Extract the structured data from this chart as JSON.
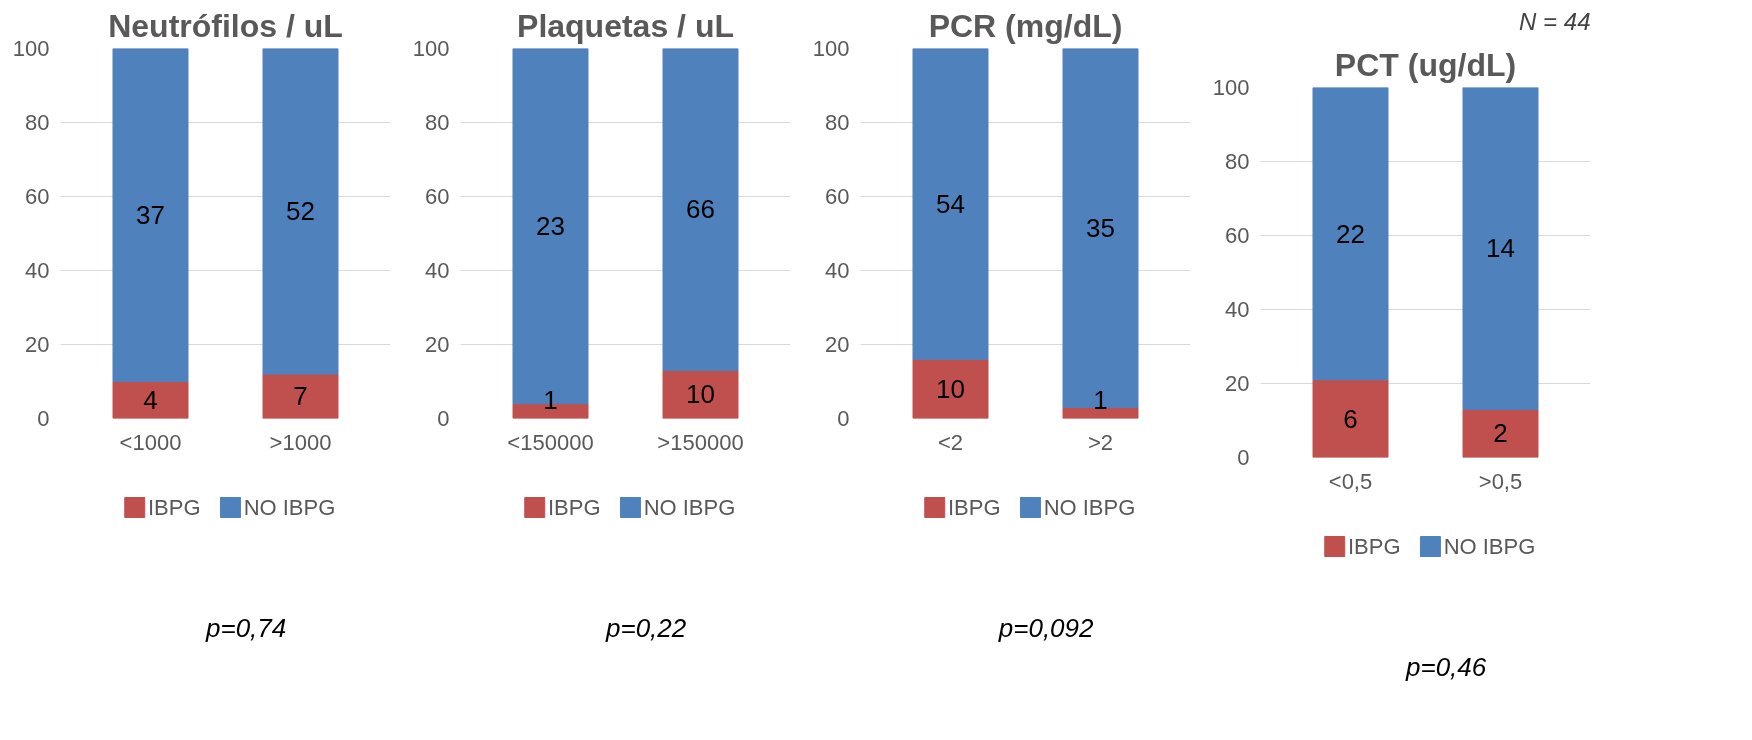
{
  "chart_data": [
    {
      "type": "bar",
      "stacked": true,
      "title": "Neutrófilos / uL",
      "categories": [
        "<1000",
        ">1000"
      ],
      "ylim": [
        0,
        100
      ],
      "yticks": [
        0,
        20,
        40,
        60,
        80,
        100
      ],
      "grid": "y",
      "legend": "bottom",
      "annotations": [
        "4",
        "7",
        "37",
        "52",
        "p=0,74"
      ],
      "series": [
        {
          "name": "IBPG",
          "color": "#c0504d",
          "values": [
            10,
            12
          ]
        },
        {
          "name": "NO IBPG",
          "color": "#4f81bd",
          "values": [
            90,
            88
          ]
        }
      ]
    },
    {
      "type": "bar",
      "stacked": true,
      "title": "Plaquetas / uL",
      "categories": [
        "<150000",
        ">150000"
      ],
      "ylim": [
        0,
        100
      ],
      "yticks": [
        0,
        20,
        40,
        60,
        80,
        100
      ],
      "grid": "y",
      "legend": "bottom",
      "annotations": [
        "1",
        "10",
        "23",
        "66",
        "p=0,22"
      ],
      "series": [
        {
          "name": "IBPG",
          "color": "#c0504d",
          "values": [
            4,
            13
          ]
        },
        {
          "name": "NO IBPG",
          "color": "#4f81bd",
          "values": [
            96,
            87
          ]
        }
      ]
    },
    {
      "type": "bar",
      "stacked": true,
      "title": "PCR (mg/dL)",
      "categories": [
        "<2",
        ">2"
      ],
      "ylim": [
        0,
        100
      ],
      "yticks": [
        0,
        20,
        40,
        60,
        80,
        100
      ],
      "grid": "y",
      "legend": "bottom",
      "annotations": [
        "10",
        "1",
        "54",
        "35",
        "p=0,092"
      ],
      "series": [
        {
          "name": "IBPG",
          "color": "#c0504d",
          "values": [
            16,
            3
          ]
        },
        {
          "name": "NO IBPG",
          "color": "#4f81bd",
          "values": [
            84,
            97
          ]
        }
      ]
    },
    {
      "type": "bar",
      "stacked": true,
      "title": "PCT (ug/dL)",
      "categories": [
        "<0,5",
        ">0,5"
      ],
      "ylim": [
        0,
        100
      ],
      "yticks": [
        0,
        20,
        40,
        60,
        80,
        100
      ],
      "grid": "y",
      "legend": "bottom",
      "annotations": [
        "6",
        "2",
        "22",
        "14",
        "N = 44",
        "p=0,46"
      ],
      "series": [
        {
          "name": "IBPG",
          "color": "#c0504d",
          "values": [
            21,
            13
          ]
        },
        {
          "name": "NO IBPG",
          "color": "#4f81bd",
          "values": [
            79,
            87
          ]
        }
      ]
    }
  ]
}
